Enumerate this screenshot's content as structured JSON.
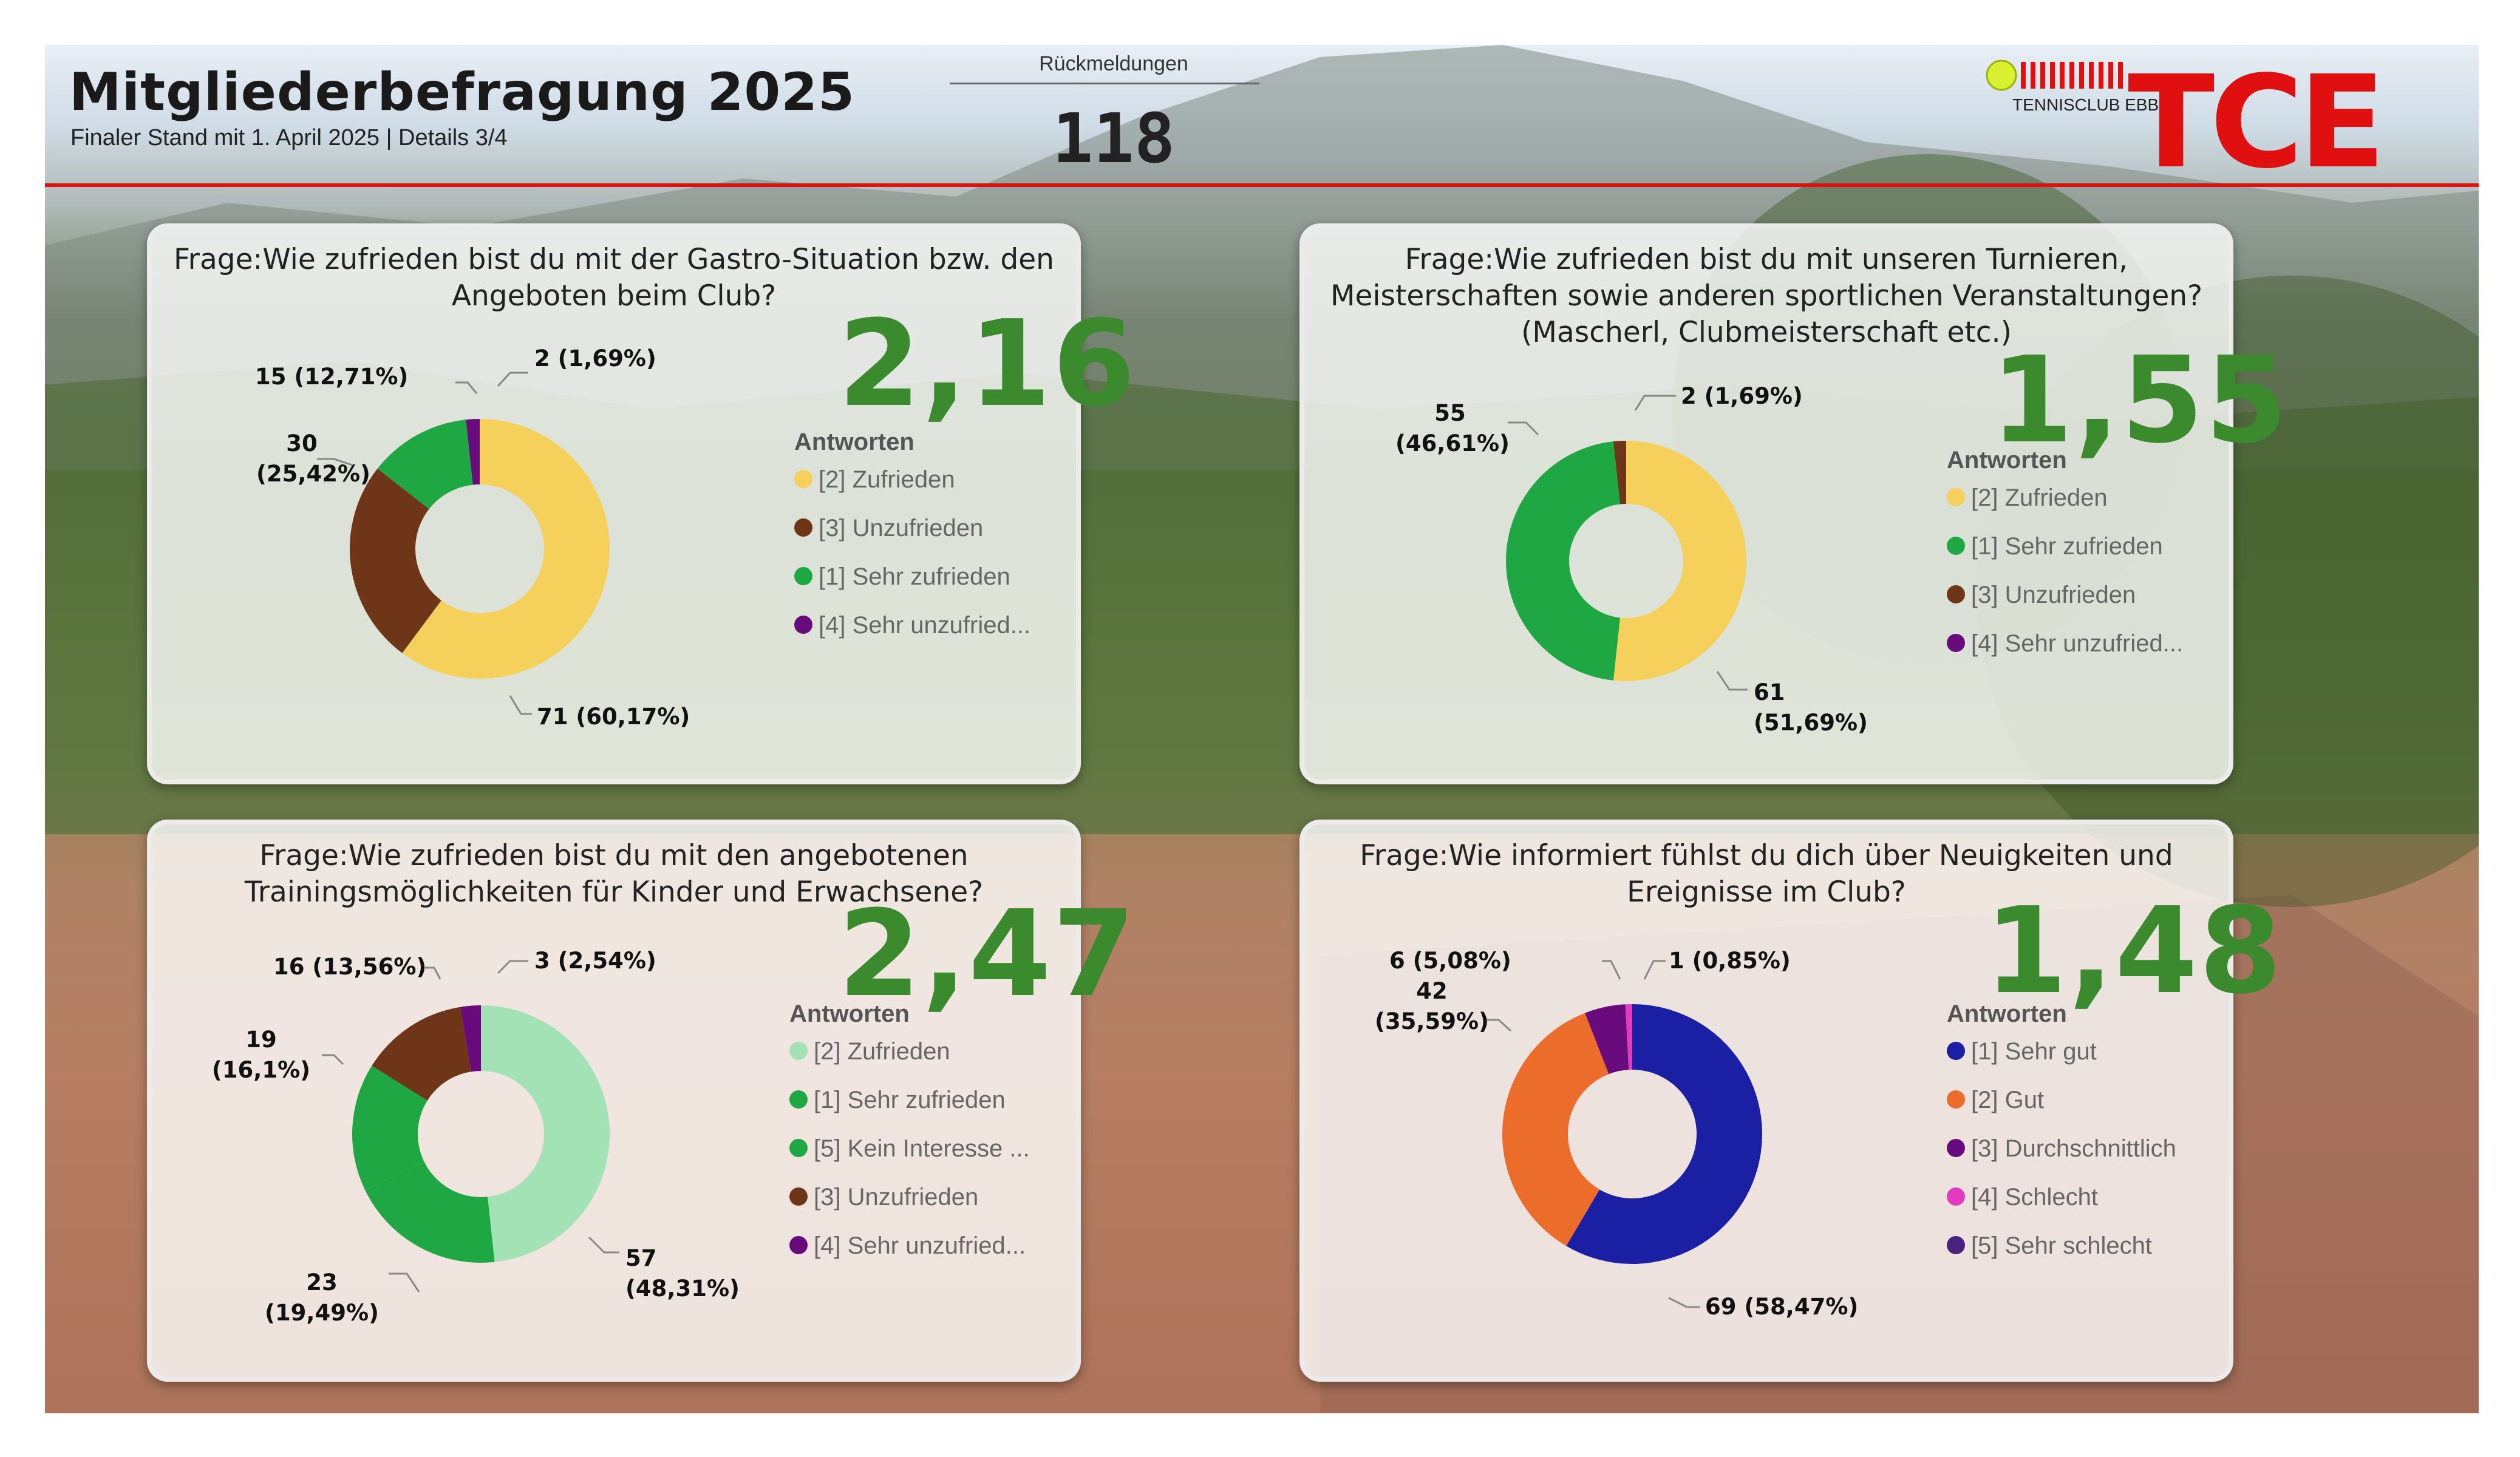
{
  "header": {
    "title": "Mitgliederbefragung 2025",
    "subtitle": "Finaler Stand mit 1. April  2025 | Details 3/4",
    "kpi_label": "Rückmeldungen",
    "kpi_value": "118",
    "logo_club": "TENNISCLUB EBBS",
    "logo_mark": "TCE"
  },
  "colors": {
    "accent_red": "#e01010",
    "score_green": "#3b8a2e",
    "yellow": "#f5d05b",
    "brown": "#6e3519",
    "green": "#1ea743",
    "purple": "#6a0b7d",
    "light_green": "#a3e2b5",
    "blue": "#1b1fa3",
    "orange": "#ec6c2c",
    "pink": "#e23bbf",
    "dark_purple": "#4a2380"
  },
  "chart_data": [
    {
      "type": "pie",
      "question": "Frage:Wie zufrieden bist du mit der Gastro-Situation bzw. den Angeboten beim Club?",
      "score": "2,16",
      "legend_title": "Antworten",
      "legend": [
        "[2] Zufrieden",
        "[3] Unzufrieden",
        "[1] Sehr zufrieden",
        "[4] Sehr unzufried..."
      ],
      "slices": [
        {
          "name": "[2] Zufrieden",
          "value": 71,
          "label": "71 (60,17%)",
          "color": "#f5d05b"
        },
        {
          "name": "[3] Unzufrieden",
          "value": 30,
          "label": "30 (25,42%)",
          "color": "#6e3519"
        },
        {
          "name": "[1] Sehr zufrieden",
          "value": 15,
          "label": "15 (12,71%)",
          "color": "#1ea743"
        },
        {
          "name": "[4] Sehr unzufrieden",
          "value": 2,
          "label": "2 (1,69%)",
          "color": "#6a0b7d"
        }
      ]
    },
    {
      "type": "pie",
      "question": "Frage:Wie zufrieden bist du mit unseren Turnieren, Meisterschaften sowie anderen sportlichen Veranstaltungen? (Mascherl, Clubmeisterschaft etc.)",
      "score": "1,55",
      "legend_title": "Antworten",
      "legend": [
        "[2] Zufrieden",
        "[1] Sehr zufrieden",
        "[3] Unzufrieden",
        "[4] Sehr unzufried..."
      ],
      "slices": [
        {
          "name": "[2] Zufrieden",
          "value": 61,
          "label": "61 (51,69%)",
          "color": "#f5d05b"
        },
        {
          "name": "[1] Sehr zufrieden",
          "value": 55,
          "label": "55 (46,61%)",
          "color": "#1ea743"
        },
        {
          "name": "[3] Unzufrieden",
          "value": 2,
          "label": "2 (1,69%)",
          "color": "#6e3519"
        },
        {
          "name": "[4] Sehr unzufrieden",
          "value": 0,
          "label": "",
          "color": "#6a0b7d"
        }
      ]
    },
    {
      "type": "pie",
      "question": "Frage:Wie zufrieden bist du mit den angebotenen Trainingsmöglichkeiten für Kinder und Erwachsene?",
      "score": "2,47",
      "legend_title": "Antworten",
      "legend": [
        "[2] Zufrieden",
        "[1] Sehr zufrieden",
        "[5] Kein Interesse ...",
        "[3] Unzufrieden",
        "[4] Sehr unzufried..."
      ],
      "slices": [
        {
          "name": "[2] Zufrieden",
          "value": 57,
          "label": "57 (48,31%)",
          "color": "#a3e2b5"
        },
        {
          "name": "[1] Sehr zufrieden",
          "value": 23,
          "label": "23 (19,49%)",
          "color": "#1ea743"
        },
        {
          "name": "[5] Kein Interesse",
          "value": 19,
          "label": "19 (16,1%)",
          "color": "#1ea743"
        },
        {
          "name": "[3] Unzufrieden",
          "value": 16,
          "label": "16 (13,56%)",
          "color": "#6e3519"
        },
        {
          "name": "[4] Sehr unzufrieden",
          "value": 3,
          "label": "3 (2,54%)",
          "color": "#6a0b7d"
        }
      ]
    },
    {
      "type": "pie",
      "question": "Frage:Wie informiert fühlst du dich über Neuigkeiten und Ereignisse im Club?",
      "score": "1,48",
      "legend_title": "Antworten",
      "legend": [
        "[1] Sehr gut",
        "[2] Gut",
        "[3] Durchschnittlich",
        "[4] Schlecht",
        "[5] Sehr schlecht"
      ],
      "slices": [
        {
          "name": "[1] Sehr gut",
          "value": 69,
          "label": "69 (58,47%)",
          "color": "#1b1fa3"
        },
        {
          "name": "[2] Gut",
          "value": 42,
          "label": "42 (35,59%)",
          "color": "#ec6c2c"
        },
        {
          "name": "[3] Durchschnittlich",
          "value": 6,
          "label": "6 (5,08%)",
          "color": "#6a0b7d"
        },
        {
          "name": "[4] Schlecht",
          "value": 1,
          "label": "1 (0,85%)",
          "color": "#e23bbf"
        },
        {
          "name": "[5] Sehr schlecht",
          "value": 0,
          "label": "",
          "color": "#4a2380"
        }
      ]
    }
  ]
}
